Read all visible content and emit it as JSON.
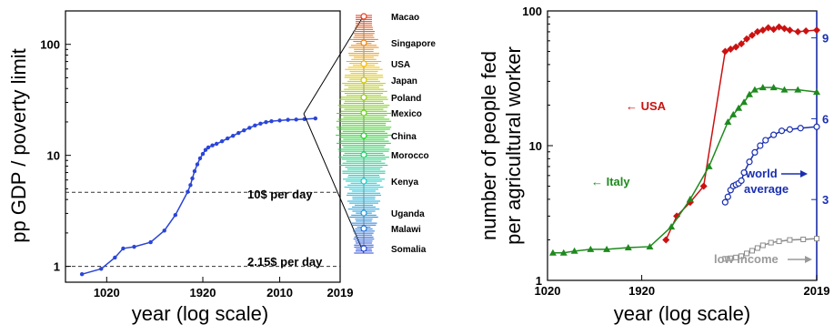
{
  "chart_data": [
    {
      "type": "line",
      "ylabel": "pp GDP / poverty limit",
      "xlabel": "year (log scale)",
      "x_ticks": [
        "1020",
        "1920",
        "2010",
        "2019"
      ],
      "y_ticks": [
        "1",
        "10",
        "100"
      ],
      "y_scale": "log",
      "ylim": [
        0.72,
        200
      ],
      "reference_lines": [
        {
          "label": "10$ per day",
          "value": 4.65
        },
        {
          "label": "2.15$ per day",
          "value": 1.0
        }
      ],
      "series": [
        {
          "color": "#2a45d8",
          "points": [
            [
              0.06,
              0.85
            ],
            [
              0.13,
              0.95
            ],
            [
              0.18,
              1.2
            ],
            [
              0.21,
              1.45
            ],
            [
              0.25,
              1.5
            ],
            [
              0.31,
              1.65
            ],
            [
              0.36,
              2.1
            ],
            [
              0.4,
              2.9
            ],
            [
              0.445,
              4.7
            ],
            [
              0.455,
              5.4
            ],
            [
              0.462,
              6.2
            ],
            [
              0.47,
              7.2
            ],
            [
              0.48,
              8.3
            ],
            [
              0.49,
              9.4
            ],
            [
              0.5,
              10.3
            ],
            [
              0.51,
              11.2
            ],
            [
              0.52,
              11.8
            ],
            [
              0.535,
              12.3
            ],
            [
              0.55,
              12.7
            ],
            [
              0.57,
              13.4
            ],
            [
              0.59,
              14.2
            ],
            [
              0.61,
              15.0
            ],
            [
              0.63,
              15.9
            ],
            [
              0.65,
              16.8
            ],
            [
              0.67,
              17.7
            ],
            [
              0.69,
              18.6
            ],
            [
              0.71,
              19.3
            ],
            [
              0.73,
              19.9
            ],
            [
              0.75,
              20.3
            ],
            [
              0.78,
              20.6
            ],
            [
              0.81,
              20.9
            ],
            [
              0.84,
              21.0
            ],
            [
              0.87,
              21.2
            ],
            [
              0.91,
              21.5
            ]
          ]
        }
      ],
      "country_labels": [
        "Macao",
        "Singapore",
        "USA",
        "Japan",
        "Poland",
        "Mexico",
        "China",
        "Morocco",
        "Kenya",
        "Uganda",
        "Malawi",
        "Somalia"
      ],
      "colors": {
        "top": "#e23a22",
        "mid_high": "#f2c400",
        "mid": "#22d422",
        "mid_low": "#12c8d8",
        "low": "#2a45d8"
      }
    },
    {
      "type": "line",
      "ylabel_lines": [
        "number of people fed",
        "per agricultural worker"
      ],
      "xlabel": "year (log scale)",
      "x_ticks": [
        "1020",
        "1920",
        "2019"
      ],
      "y_ticks": [
        "1",
        "10",
        "100"
      ],
      "y2_ticks": [
        "3",
        "6",
        "9"
      ],
      "y_scale": "log",
      "ylim": [
        1,
        100
      ],
      "y2lim": [
        0,
        10
      ],
      "annotations": {
        "usa": "← USA",
        "italy": "← Italy",
        "world_line1": "world",
        "world_line2": "average",
        "low_income": "low income"
      },
      "series": [
        {
          "name": "USA",
          "color": "#cc1111",
          "marker": "diamond",
          "points": [
            [
              0.44,
              2.0
            ],
            [
              0.48,
              3.0
            ],
            [
              0.53,
              3.8
            ],
            [
              0.58,
              5.0
            ],
            [
              0.66,
              50
            ],
            [
              0.68,
              52
            ],
            [
              0.7,
              54
            ],
            [
              0.72,
              57
            ],
            [
              0.74,
              62
            ],
            [
              0.76,
              66
            ],
            [
              0.78,
              70
            ],
            [
              0.8,
              72
            ],
            [
              0.82,
              75
            ],
            [
              0.84,
              73
            ],
            [
              0.86,
              76
            ],
            [
              0.88,
              74
            ],
            [
              0.9,
              72
            ],
            [
              0.93,
              70
            ],
            [
              0.96,
              71
            ],
            [
              1.0,
              72
            ]
          ]
        },
        {
          "name": "Italy",
          "color": "#1e8a1e",
          "marker": "triangle",
          "points": [
            [
              0.02,
              1.6
            ],
            [
              0.06,
              1.6
            ],
            [
              0.1,
              1.65
            ],
            [
              0.16,
              1.7
            ],
            [
              0.22,
              1.7
            ],
            [
              0.3,
              1.75
            ],
            [
              0.38,
              1.78
            ],
            [
              0.46,
              2.5
            ],
            [
              0.53,
              4.0
            ],
            [
              0.6,
              7.0
            ],
            [
              0.67,
              15
            ],
            [
              0.69,
              17
            ],
            [
              0.71,
              19
            ],
            [
              0.73,
              21
            ],
            [
              0.75,
              24
            ],
            [
              0.77,
              26
            ],
            [
              0.8,
              27
            ],
            [
              0.84,
              27
            ],
            [
              0.88,
              26
            ],
            [
              0.93,
              26
            ],
            [
              1.0,
              25
            ]
          ]
        },
        {
          "name": "world average",
          "color": "#1a2fb0",
          "marker": "circle-open",
          "axis": "right",
          "points": [
            [
              0.66,
              2.9
            ],
            [
              0.67,
              3.1
            ],
            [
              0.68,
              3.35
            ],
            [
              0.69,
              3.5
            ],
            [
              0.7,
              3.55
            ],
            [
              0.71,
              3.6
            ],
            [
              0.72,
              3.7
            ],
            [
              0.73,
              4.0
            ],
            [
              0.75,
              4.4
            ],
            [
              0.77,
              4.75
            ],
            [
              0.79,
              5.0
            ],
            [
              0.81,
              5.2
            ],
            [
              0.84,
              5.4
            ],
            [
              0.87,
              5.55
            ],
            [
              0.9,
              5.6
            ],
            [
              0.94,
              5.65
            ],
            [
              1.0,
              5.7
            ]
          ]
        },
        {
          "name": "low income",
          "color": "#8a8a8a",
          "marker": "square-open",
          "axis": "right",
          "points": [
            [
              0.66,
              0.8
            ],
            [
              0.68,
              0.82
            ],
            [
              0.7,
              0.85
            ],
            [
              0.72,
              0.9
            ],
            [
              0.74,
              1.0
            ],
            [
              0.76,
              1.1
            ],
            [
              0.78,
              1.2
            ],
            [
              0.8,
              1.3
            ],
            [
              0.83,
              1.4
            ],
            [
              0.86,
              1.45
            ],
            [
              0.9,
              1.5
            ],
            [
              0.95,
              1.52
            ],
            [
              1.0,
              1.55
            ]
          ]
        }
      ]
    }
  ]
}
